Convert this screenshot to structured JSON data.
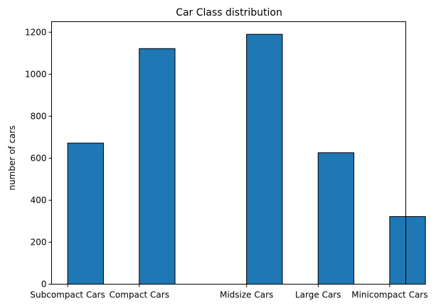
{
  "chart_data": {
    "type": "bar",
    "title": "Car Class distribution",
    "xlabel": "",
    "ylabel": "number of cars",
    "categories": [
      "Subcompact Cars",
      "Compact Cars",
      "Midsize Cars",
      "Large Cars",
      "Minicompact Cars"
    ],
    "x_positions": [
      0,
      1,
      2.5,
      3.5,
      4.5
    ],
    "bin_width": 0.5,
    "values": [
      672,
      1122,
      1190,
      626,
      322
    ],
    "ylim": [
      0,
      1250
    ],
    "yticks": [
      0,
      200,
      400,
      600,
      800,
      1000,
      1200
    ],
    "grid": false,
    "bar_color": "#1f77b4",
    "edge_color": "#000000"
  }
}
